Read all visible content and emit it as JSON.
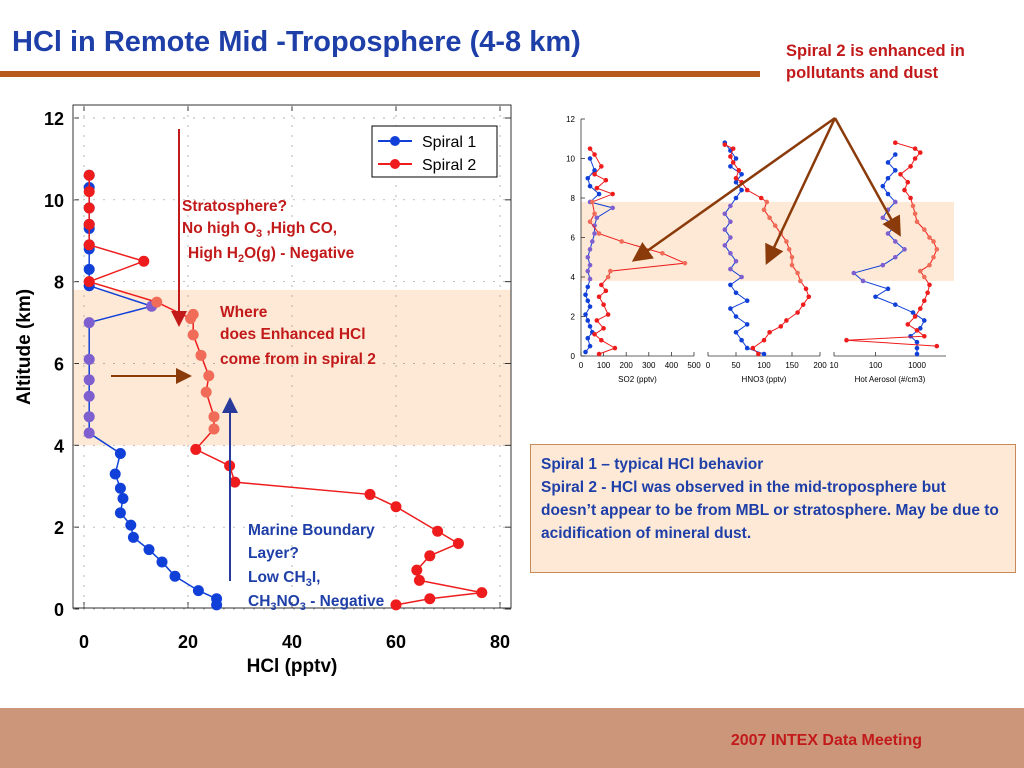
{
  "slide": {
    "title": "HCl in Remote Mid -Troposphere (4-8 km)",
    "top_note": "Spiral 2 is enhanced in pollutants and dust",
    "footer": "2007 INTEX Data Meeting",
    "info_lines": [
      "Spiral 1 – typical HCl behavior",
      "Spiral 2 - HCl was observed in the mid-troposphere but doesn’t appear to be from MBL or stratosphere. May be due to acidification of mineral dust."
    ],
    "colors": {
      "title": "#1f3fa8",
      "accent_red": "#c21a1a",
      "rule": "#b8581b",
      "band": "#fde9d6",
      "footer_bg": "#cc967a",
      "spiral1": "#1040d8",
      "spiral2": "#ee1c1c",
      "mid_blend": "#7d5fd0",
      "mid_red": "#f06c58"
    }
  },
  "annotations": {
    "strat_title": "Stratosphere?",
    "strat_line2_a": "No high O",
    "strat_line2_sub": "3",
    "strat_line2_b": " ,High CO,",
    "strat_line3_a": "High H",
    "strat_line3_sub": "2",
    "strat_line3_b": "O(g) - Negative",
    "where_1": "Where",
    "where_2": "does Enhanced HCl",
    "where_3": "come from in spiral 2",
    "mbl_1": "Marine Boundary",
    "mbl_2": "Layer?",
    "mbl_3a": "Low CH",
    "mbl_3sub": "3",
    "mbl_3b": "I,",
    "mbl_4a": "CH",
    "mbl_4sub1": "3",
    "mbl_4b": "NO",
    "mbl_4sub2": "3",
    "mbl_4c": " - Negative"
  },
  "chart_data": [
    {
      "type": "line",
      "xlabel": "HCl (pptv)",
      "ylabel": "Altitude (km)",
      "xlim": [
        0,
        80
      ],
      "ylim": [
        0,
        12
      ],
      "xticks": [
        "0",
        "20",
        "40",
        "60",
        "80"
      ],
      "yticks": [
        "0",
        "2",
        "4",
        "6",
        "8",
        "10",
        "12"
      ],
      "legend": "top-right",
      "highlight_band_km": [
        4,
        7.8
      ],
      "series": [
        {
          "name": "Spiral 1",
          "x": [
            25.5,
            25.5,
            22,
            17.5,
            15,
            12.5,
            9.5,
            9,
            7,
            7.5,
            7,
            6,
            7,
            1,
            1,
            1,
            1,
            1,
            1,
            13,
            1,
            1,
            1,
            1,
            1,
            1,
            1,
            1,
            1
          ],
          "y": [
            0.1,
            0.25,
            0.45,
            0.8,
            1.15,
            1.45,
            1.75,
            2.05,
            2.35,
            2.7,
            2.95,
            3.3,
            3.8,
            4.3,
            4.7,
            5.2,
            5.6,
            6.1,
            7.0,
            7.4,
            7.9,
            8.3,
            8.9,
            9.3,
            9.4,
            9.8,
            10.3,
            10.6,
            8.8
          ]
        },
        {
          "name": "Spiral 2",
          "x": [
            60,
            66.5,
            76.5,
            64.5,
            64,
            66.5,
            72,
            68,
            60,
            55,
            29,
            28,
            21.5,
            25,
            25,
            23.5,
            24,
            22.5,
            21,
            21,
            20.5,
            14,
            1,
            11.5,
            1,
            1,
            1,
            1,
            1
          ],
          "y": [
            0.1,
            0.25,
            0.4,
            0.7,
            0.95,
            1.3,
            1.6,
            1.9,
            2.5,
            2.8,
            3.1,
            3.5,
            3.9,
            4.4,
            4.7,
            5.3,
            5.7,
            6.2,
            6.7,
            7.2,
            7.1,
            7.5,
            8.0,
            8.5,
            8.9,
            9.4,
            9.8,
            10.2,
            10.6
          ]
        }
      ]
    },
    {
      "type": "line",
      "xlabel": "SO2 (pptv)",
      "xlim": [
        0,
        500
      ],
      "ylim": [
        0,
        12
      ],
      "xticks": [
        "0",
        "100",
        "200",
        "300",
        "400",
        "500"
      ],
      "yticks": [
        "0",
        "2",
        "4",
        "6",
        "8",
        "10",
        "12"
      ],
      "highlight_band_km": [
        3.8,
        7.8
      ],
      "series": [
        {
          "name": "Spiral 1",
          "x": [
            20,
            40,
            30,
            50,
            40,
            30,
            20,
            40,
            30,
            20,
            30,
            40,
            30,
            40,
            30,
            40,
            50,
            60,
            60,
            70,
            140,
            40,
            80,
            40,
            30,
            60,
            40
          ],
          "y": [
            0.2,
            0.5,
            0.9,
            1.2,
            1.5,
            1.8,
            2.1,
            2.5,
            2.8,
            3.1,
            3.5,
            3.9,
            4.3,
            4.6,
            5.0,
            5.4,
            5.8,
            6.2,
            6.6,
            7.0,
            7.5,
            7.8,
            8.2,
            8.6,
            9.0,
            9.4,
            10.0
          ]
        },
        {
          "name": "Spiral 2",
          "x": [
            80,
            150,
            90,
            60,
            100,
            70,
            120,
            100,
            80,
            110,
            90,
            120,
            130,
            460,
            360,
            180,
            80,
            40,
            60,
            50,
            140,
            70,
            110,
            60,
            90,
            60,
            40
          ],
          "y": [
            0.1,
            0.4,
            0.8,
            1.1,
            1.4,
            1.8,
            2.1,
            2.6,
            3.0,
            3.3,
            3.6,
            4.0,
            4.3,
            4.7,
            5.2,
            5.8,
            6.2,
            6.8,
            7.2,
            7.8,
            8.2,
            8.5,
            8.9,
            9.2,
            9.6,
            10.2,
            10.5
          ]
        }
      ]
    },
    {
      "type": "line",
      "xlabel": "HNO3 (pptv)",
      "xlim": [
        0,
        200
      ],
      "ylim": [
        0,
        12
      ],
      "xticks": [
        "0",
        "50",
        "100",
        "150",
        "200"
      ],
      "highlight_band_km": [
        3.8,
        7.8
      ],
      "series": [
        {
          "name": "Spiral 1",
          "x": [
            100,
            70,
            60,
            50,
            70,
            50,
            40,
            70,
            50,
            40,
            60,
            40,
            50,
            40,
            30,
            40,
            30,
            40,
            30,
            40,
            50,
            60,
            50,
            60,
            40,
            50,
            40,
            30
          ],
          "y": [
            0.1,
            0.4,
            0.8,
            1.2,
            1.6,
            2.0,
            2.4,
            2.8,
            3.2,
            3.6,
            4.0,
            4.4,
            4.8,
            5.2,
            5.6,
            6.0,
            6.4,
            6.8,
            7.2,
            7.6,
            8.0,
            8.4,
            8.8,
            9.2,
            9.6,
            10.0,
            10.4,
            10.8
          ]
        },
        {
          "name": "Spiral 2",
          "x": [
            90,
            80,
            100,
            110,
            130,
            140,
            160,
            170,
            180,
            175,
            165,
            160,
            150,
            150,
            145,
            140,
            130,
            120,
            110,
            100,
            105,
            95,
            70,
            60,
            50,
            55,
            45,
            40,
            45,
            30
          ],
          "y": [
            0.1,
            0.4,
            0.8,
            1.2,
            1.5,
            1.8,
            2.2,
            2.6,
            3.0,
            3.4,
            3.8,
            4.2,
            4.6,
            5.0,
            5.4,
            5.8,
            6.2,
            6.6,
            7.0,
            7.4,
            7.8,
            8.0,
            8.4,
            8.8,
            9.0,
            9.4,
            9.8,
            10.1,
            10.5,
            10.7
          ]
        }
      ]
    },
    {
      "type": "line",
      "xlabel": "Hot Aerosol (#/cm3)",
      "xlim": [
        10,
        5000
      ],
      "xscale": "log",
      "ylim": [
        0,
        12
      ],
      "xticks": [
        "10",
        "100",
        "1000"
      ],
      "highlight_band_km": [
        3.8,
        7.8
      ],
      "series": [
        {
          "name": "Spiral 1",
          "x": [
            1000,
            1000,
            1000,
            700,
            1200,
            1500,
            800,
            300,
            100,
            200,
            50,
            30,
            150,
            300,
            500,
            300,
            200,
            300,
            150,
            200,
            300,
            200,
            150,
            200,
            300,
            200,
            300
          ],
          "y": [
            0.1,
            0.4,
            0.7,
            1.0,
            1.4,
            1.8,
            2.2,
            2.6,
            3.0,
            3.4,
            3.8,
            4.2,
            4.6,
            5.0,
            5.4,
            5.8,
            6.2,
            6.6,
            7.0,
            7.4,
            7.8,
            8.2,
            8.6,
            9.0,
            9.4,
            9.8,
            10.2
          ]
        },
        {
          "name": "Spiral 2",
          "x": [
            3000,
            20,
            1500,
            1000,
            600,
            900,
            1200,
            1500,
            1800,
            2000,
            1500,
            1200,
            2000,
            2500,
            3000,
            2500,
            2000,
            1500,
            1000,
            900,
            800,
            700,
            500,
            600,
            400,
            700,
            900,
            1200,
            900,
            300
          ],
          "y": [
            0.5,
            0.8,
            1.0,
            1.3,
            1.6,
            2.0,
            2.4,
            2.8,
            3.2,
            3.6,
            4.0,
            4.3,
            4.6,
            5.0,
            5.4,
            5.8,
            6.0,
            6.4,
            6.8,
            7.2,
            7.6,
            8.0,
            8.4,
            8.8,
            9.2,
            9.6,
            10.0,
            10.3,
            10.5,
            10.8
          ]
        }
      ]
    }
  ],
  "mini_ylabels": [
    "0",
    "2",
    "4",
    "6",
    "8",
    "10",
    "12"
  ]
}
